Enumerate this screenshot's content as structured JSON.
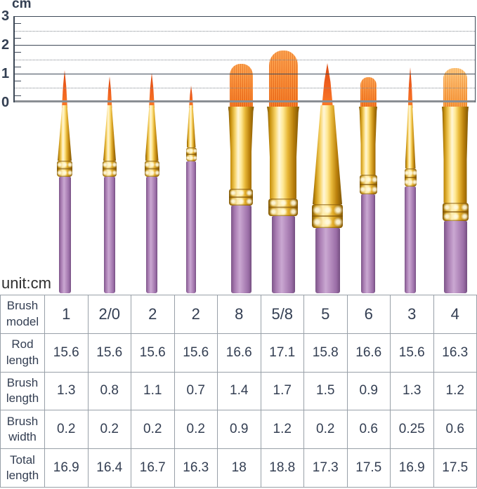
{
  "ruler": {
    "unit_label": "cm",
    "labels": [
      "3",
      "2",
      "1",
      "0"
    ]
  },
  "unit_note": "unit:cm",
  "brushes": [
    {
      "model": "1",
      "type": "round"
    },
    {
      "model": "2/0",
      "type": "round"
    },
    {
      "model": "2",
      "type": "round"
    },
    {
      "model": "2",
      "type": "round"
    },
    {
      "model": "8",
      "type": "flat"
    },
    {
      "model": "5/8",
      "type": "flat"
    },
    {
      "model": "5",
      "type": "round"
    },
    {
      "model": "6",
      "type": "flat"
    },
    {
      "model": "3",
      "type": "round"
    },
    {
      "model": "4",
      "type": "flat"
    }
  ],
  "table": {
    "row_headers": [
      "Brush model",
      "Rod length",
      "Brush length",
      "Brush width",
      "Total length"
    ],
    "rows": {
      "brush_model": [
        "1",
        "2/0",
        "2",
        "2",
        "8",
        "5/8",
        "5",
        "6",
        "3",
        "4"
      ],
      "rod_length": [
        "15.6",
        "15.6",
        "15.6",
        "15.6",
        "16.6",
        "17.1",
        "15.8",
        "16.6",
        "15.6",
        "16.3"
      ],
      "brush_length": [
        "1.3",
        "0.8",
        "1.1",
        "0.7",
        "1.4",
        "1.7",
        "1.5",
        "0.9",
        "1.3",
        "1.2"
      ],
      "brush_width": [
        "0.2",
        "0.2",
        "0.2",
        "0.2",
        "0.9",
        "1.2",
        "0.2",
        "0.6",
        "0.25",
        "0.6"
      ],
      "total_length": [
        "16.9",
        "16.4",
        "16.7",
        "16.3",
        "18",
        "18.8",
        "17.3",
        "17.5",
        "16.9",
        "17.5"
      ]
    }
  },
  "colors": {
    "bristle_orange": "#f8862f",
    "ferrule_gold": "#e9b93a",
    "handle_purple": "#b289bd",
    "ruler_line": "#3f4a59",
    "table_border": "#98a0a8",
    "text": "#333e52"
  }
}
